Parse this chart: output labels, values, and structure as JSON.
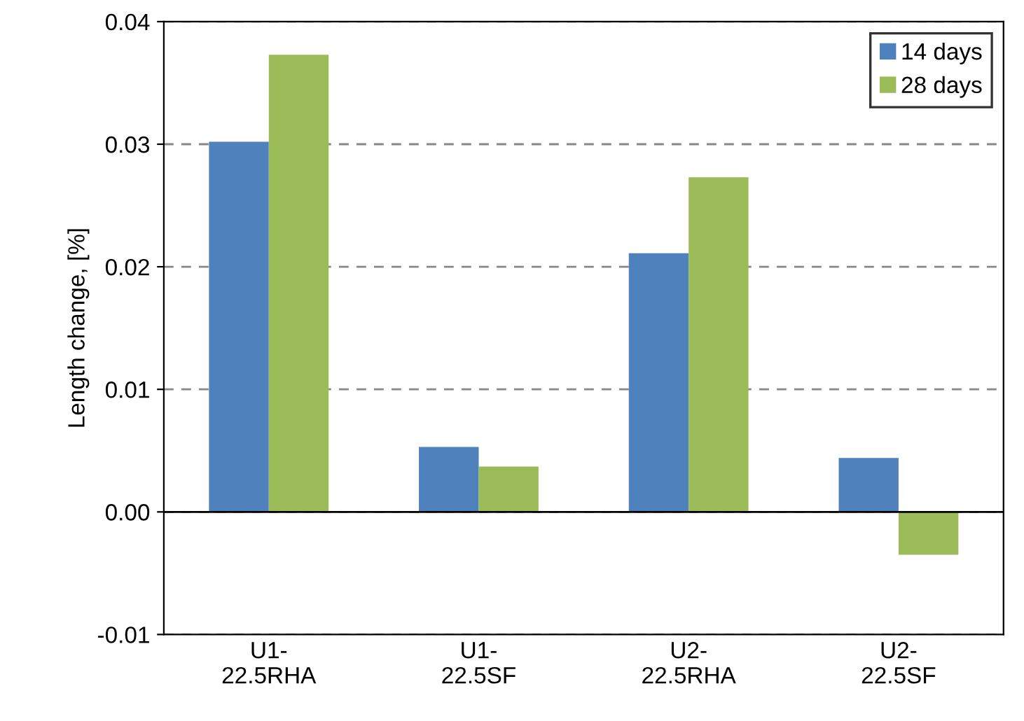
{
  "chart_data": {
    "type": "bar",
    "ylabel": "Length change, [%]",
    "categories": [
      "U1-\n22.5RHA",
      "U1-\n22.5SF",
      "U2-\n22.5RHA",
      "U2-\n22.5SF"
    ],
    "series": [
      {
        "name": "14 days",
        "color": "#4f81bd",
        "values": [
          0.0302,
          0.0053,
          0.0211,
          0.0044
        ]
      },
      {
        "name": "28 days",
        "color": "#9bbb59",
        "values": [
          0.0373,
          0.0037,
          0.0273,
          -0.0035
        ]
      }
    ],
    "ylim": [
      -0.01,
      0.04
    ],
    "yticks": [
      {
        "value": -0.01,
        "label": "-0.01"
      },
      {
        "value": 0,
        "label": "0.00"
      },
      {
        "value": 0.01,
        "label": "0.01"
      },
      {
        "value": 0.02,
        "label": "0.02"
      },
      {
        "value": 0.03,
        "label": "0.03"
      },
      {
        "value": 0.04,
        "label": "0.04"
      }
    ],
    "grid": "y",
    "legend": "top right"
  }
}
